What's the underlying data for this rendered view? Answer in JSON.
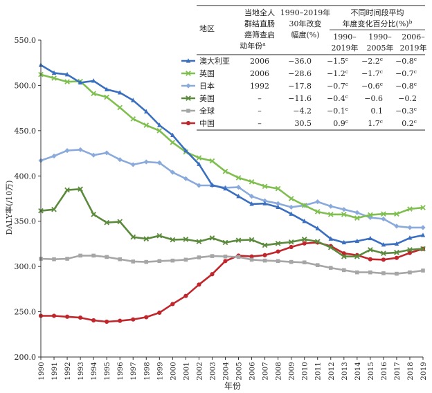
{
  "chart_data": {
    "type": "line",
    "xlabel": "年份",
    "ylabel": "DALY率(/10万)",
    "ylim": [
      200.0,
      550.0
    ],
    "yticks": [
      "200.0",
      "250.0",
      "300.0",
      "350.0",
      "400.0",
      "450.0",
      "500.0",
      "550.0"
    ],
    "x": [
      1990,
      1991,
      1992,
      1993,
      1994,
      1995,
      1996,
      1997,
      1998,
      1999,
      2000,
      2001,
      2002,
      2003,
      2004,
      2005,
      2006,
      2007,
      2008,
      2009,
      2010,
      2011,
      2012,
      2013,
      2014,
      2015,
      2016,
      2017,
      2018,
      2019
    ],
    "xtick_labels": [
      "1990",
      "1991",
      "1992",
      "1993",
      "1994",
      "1995",
      "1996",
      "1997",
      "1998",
      "1999",
      "2000",
      "2001",
      "2002",
      "2003",
      "2004",
      "2005",
      "2006",
      "2007",
      "2008",
      "2009",
      "2010",
      "2011",
      "2012",
      "2013",
      "2014",
      "2015",
      "2016",
      "2017",
      "2018",
      "2019"
    ],
    "series": [
      {
        "name": "澳大利亚",
        "color": "#3a6fbf",
        "marker": "triangle",
        "values": [
          522.5,
          513.8,
          512.0,
          503.0,
          505.0,
          495.5,
          492.0,
          483.5,
          471.0,
          456.0,
          445.0,
          428.0,
          413.0,
          390.0,
          386.0,
          377.5,
          369.0,
          369.5,
          365.5,
          358.0,
          350.0,
          342.0,
          330.5,
          326.5,
          328.0,
          331.0,
          324.0,
          325.0,
          331.5,
          334.5
        ]
      },
      {
        "name": "英国",
        "color": "#7fbf4f",
        "marker": "x",
        "values": [
          512.0,
          508.0,
          504.0,
          504.5,
          491.0,
          487.0,
          475.5,
          463.0,
          456.0,
          450.0,
          437.0,
          426.5,
          420.0,
          416.5,
          405.0,
          398.0,
          393.5,
          388.5,
          386.0,
          375.0,
          367.5,
          360.5,
          357.5,
          357.5,
          353.5,
          357.0,
          358.0,
          358.0,
          363.5,
          365.0
        ]
      },
      {
        "name": "日本",
        "color": "#8aaadb",
        "marker": "diamond",
        "values": [
          417.0,
          422.0,
          428.0,
          429.0,
          423.0,
          425.5,
          418.0,
          412.5,
          415.5,
          414.5,
          404.0,
          397.0,
          389.5,
          389.5,
          387.0,
          387.5,
          377.5,
          372.5,
          369.5,
          365.5,
          367.5,
          371.5,
          366.5,
          363.0,
          359.5,
          354.0,
          352.5,
          344.5,
          343.0,
          343.0
        ]
      },
      {
        "name": "美国",
        "color": "#5b8a3c",
        "marker": "x",
        "values": [
          361.5,
          363.0,
          384.5,
          385.5,
          357.5,
          348.5,
          349.5,
          332.5,
          330.5,
          334.0,
          329.5,
          330.0,
          327.5,
          331.5,
          326.5,
          329.0,
          329.5,
          323.5,
          325.5,
          327.0,
          330.0,
          327.5,
          321.0,
          311.0,
          311.0,
          318.5,
          314.5,
          315.5,
          318.5,
          319.5
        ]
      },
      {
        "name": "全球",
        "color": "#a6a6a6",
        "marker": "square",
        "values": [
          308.5,
          308.0,
          308.5,
          312.0,
          312.0,
          310.5,
          308.0,
          305.5,
          305.0,
          306.0,
          306.5,
          307.5,
          310.0,
          311.5,
          311.0,
          310.5,
          307.5,
          306.5,
          306.0,
          305.0,
          304.5,
          301.5,
          298.5,
          296.0,
          293.5,
          293.5,
          292.5,
          292.0,
          293.5,
          295.5
        ]
      },
      {
        "name": "中国",
        "color": "#c0272d",
        "marker": "circle",
        "values": [
          245.5,
          245.5,
          244.5,
          243.5,
          240.5,
          239.0,
          240.0,
          241.5,
          244.0,
          249.0,
          258.5,
          267.5,
          280.0,
          291.5,
          306.0,
          312.0,
          311.0,
          312.5,
          316.5,
          321.5,
          325.5,
          326.5,
          322.5,
          314.5,
          312.5,
          308.0,
          307.5,
          309.5,
          315.0,
          319.5
        ]
      }
    ],
    "legend_placement": "top-right",
    "legend_table": {
      "header_region": "地区",
      "header_year": [
        "当地全人",
        "群结直肠",
        "癌筛查启",
        "动年份",
        "a"
      ],
      "header_change": [
        "1990–2019年",
        "30年改变",
        "幅度(%)"
      ],
      "header_avg": [
        "不同时间段平均",
        "年度变化百分比(%)",
        "b"
      ],
      "sub_headers": [
        [
          "1990–",
          "2019年"
        ],
        [
          "1990–",
          "2005年"
        ],
        [
          "2006–",
          "2019年"
        ]
      ],
      "rows": [
        {
          "region": "澳大利亚",
          "year": "2006",
          "change": "−36.0",
          "a1": "−1.5",
          "s1": "c",
          "a2": "−2.2",
          "s2": "c",
          "a3": "−0.8",
          "s3": "c"
        },
        {
          "region": "英国",
          "year": "2006",
          "change": "−28.6",
          "a1": "−1.2",
          "s1": "c",
          "a2": "−1.7",
          "s2": "c",
          "a3": "−0.7",
          "s3": "c"
        },
        {
          "region": "日本",
          "year": "1992",
          "change": "−17.8",
          "a1": "−0.7",
          "s1": "c",
          "a2": "−0.6",
          "s2": "c",
          "a3": "−0.8",
          "s3": "c"
        },
        {
          "region": "美国",
          "year": "–",
          "change": "−11.6",
          "a1": "−0.4",
          "s1": "c",
          "a2": "−0.6",
          "s2": "",
          "a3": "−0.2",
          "s3": ""
        },
        {
          "region": "全球",
          "year": "–",
          "change": "−4.2",
          "a1": "−0.1",
          "s1": "c",
          "a2": "0.1",
          "s2": "",
          "a3": "−0.3",
          "s3": "c"
        },
        {
          "region": "中国",
          "year": "–",
          "change": "30.5",
          "a1": "0.9",
          "s1": "c",
          "a2": "1.7",
          "s2": "c",
          "a3": "0.2",
          "s3": "c"
        }
      ]
    }
  }
}
